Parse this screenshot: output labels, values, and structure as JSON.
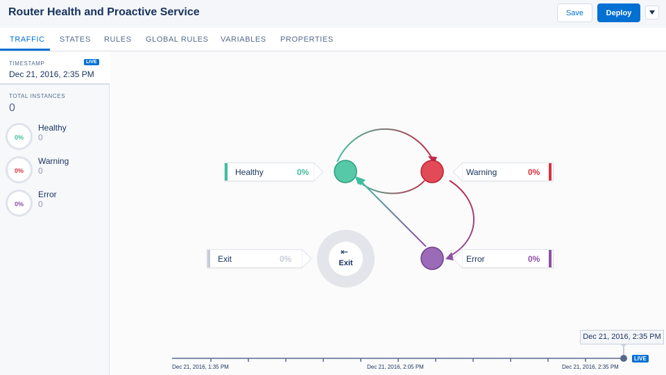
{
  "header": {
    "title": "Router Health and Proactive Service",
    "save_label": "Save",
    "deploy_label": "Deploy",
    "menu_icon": "chevron-down-icon"
  },
  "tabs": [
    {
      "label": "TRAFFIC",
      "active": true
    },
    {
      "label": "STATES",
      "active": false
    },
    {
      "label": "RULES",
      "active": false
    },
    {
      "label": "GLOBAL RULES",
      "active": false
    },
    {
      "label": "VARIABLES",
      "active": false
    },
    {
      "label": "PROPERTIES",
      "active": false
    }
  ],
  "sidebar": {
    "timestamp_label": "TIMESTAMP",
    "live_badge": "LIVE",
    "timestamp_value": "Dec 21, 2016, 2:35 PM",
    "total_label": "TOTAL INSTANCES",
    "total_value": "0",
    "stats": [
      {
        "name": "Healthy",
        "percent": "0%",
        "count": "0",
        "color": "#3fbf9d"
      },
      {
        "name": "Warning",
        "percent": "0%",
        "count": "0",
        "color": "#d9313f"
      },
      {
        "name": "Error",
        "percent": "0%",
        "count": "0",
        "color": "#8e4fa5"
      }
    ]
  },
  "states": [
    {
      "name": "Healthy",
      "percent": "0%",
      "color": "#3fbf9d"
    },
    {
      "name": "Warning",
      "percent": "0%",
      "color": "#d9313f"
    },
    {
      "name": "Error",
      "percent": "0%",
      "color": "#8e4fa5"
    },
    {
      "name": "Exit",
      "percent": "0%",
      "color": "#c8ccd5"
    }
  ],
  "exit_node": {
    "label": "Exit",
    "icon": "exit-icon"
  },
  "timeline": {
    "current": "Dec 21, 2016, 2:35 PM",
    "live_badge": "LIVE",
    "labels": [
      "Dec 21, 2016, 1:35 PM",
      "Dec 21, 2016, 2:05 PM",
      "Dec 21, 2016, 2:35 PM"
    ]
  }
}
